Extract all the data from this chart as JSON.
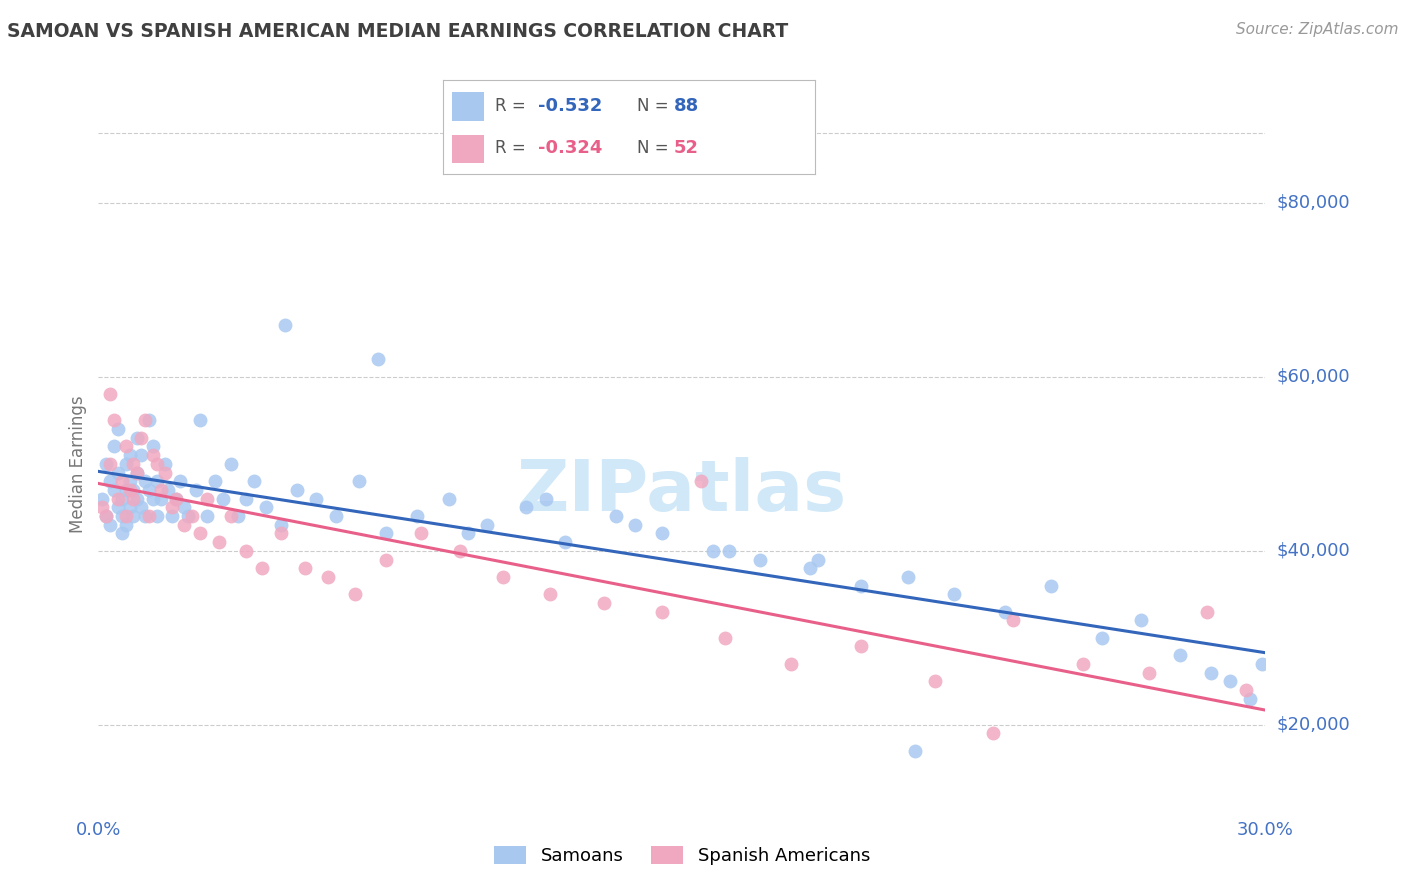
{
  "title": "SAMOAN VS SPANISH AMERICAN MEDIAN EARNINGS CORRELATION CHART",
  "source": "Source: ZipAtlas.com",
  "ylabel": "Median Earnings",
  "xlim": [
    0.0,
    0.3
  ],
  "ylim": [
    10000,
    90000
  ],
  "yticks": [
    20000,
    40000,
    60000,
    80000
  ],
  "xticks": [
    0.0,
    0.05,
    0.1,
    0.15,
    0.2,
    0.25,
    0.3
  ],
  "ytick_labels": [
    "$20,000",
    "$40,000",
    "$60,000",
    "$80,000"
  ],
  "samoan_color": "#a8c8f0",
  "spanish_color": "#f0a8c0",
  "samoan_line_color": "#3366bb",
  "spanish_line_color": "#e8608a",
  "watermark": "ZIPatlas",
  "watermark_color": "#d0e8f8",
  "grid_color": "#cccccc",
  "axis_label_color": "#4472c4",
  "title_color": "#404040",
  "samoan_x": [
    0.001,
    0.002,
    0.002,
    0.003,
    0.003,
    0.004,
    0.004,
    0.005,
    0.005,
    0.005,
    0.006,
    0.006,
    0.006,
    0.007,
    0.007,
    0.007,
    0.008,
    0.008,
    0.008,
    0.009,
    0.009,
    0.01,
    0.01,
    0.01,
    0.011,
    0.011,
    0.012,
    0.012,
    0.013,
    0.013,
    0.014,
    0.014,
    0.015,
    0.015,
    0.016,
    0.017,
    0.018,
    0.019,
    0.02,
    0.021,
    0.022,
    0.023,
    0.025,
    0.026,
    0.028,
    0.03,
    0.032,
    0.034,
    0.036,
    0.038,
    0.04,
    0.043,
    0.047,
    0.051,
    0.056,
    0.061,
    0.067,
    0.074,
    0.082,
    0.09,
    0.1,
    0.11,
    0.12,
    0.133,
    0.145,
    0.158,
    0.17,
    0.183,
    0.196,
    0.208,
    0.22,
    0.233,
    0.245,
    0.258,
    0.268,
    0.278,
    0.286,
    0.291,
    0.296,
    0.299,
    0.048,
    0.072,
    0.095,
    0.115,
    0.138,
    0.162,
    0.185,
    0.21
  ],
  "samoan_y": [
    46000,
    44000,
    50000,
    43000,
    48000,
    47000,
    52000,
    49000,
    45000,
    54000,
    44000,
    42000,
    46000,
    43000,
    47000,
    50000,
    45000,
    48000,
    51000,
    44000,
    47000,
    46000,
    49000,
    53000,
    45000,
    51000,
    48000,
    44000,
    47000,
    55000,
    46000,
    52000,
    48000,
    44000,
    46000,
    50000,
    47000,
    44000,
    46000,
    48000,
    45000,
    44000,
    47000,
    55000,
    44000,
    48000,
    46000,
    50000,
    44000,
    46000,
    48000,
    45000,
    43000,
    47000,
    46000,
    44000,
    48000,
    42000,
    44000,
    46000,
    43000,
    45000,
    41000,
    44000,
    42000,
    40000,
    39000,
    38000,
    36000,
    37000,
    35000,
    33000,
    36000,
    30000,
    32000,
    28000,
    26000,
    25000,
    23000,
    27000,
    66000,
    62000,
    42000,
    46000,
    43000,
    40000,
    39000,
    17000
  ],
  "spanish_x": [
    0.001,
    0.002,
    0.003,
    0.003,
    0.004,
    0.005,
    0.006,
    0.007,
    0.007,
    0.008,
    0.009,
    0.009,
    0.01,
    0.011,
    0.012,
    0.013,
    0.014,
    0.015,
    0.016,
    0.017,
    0.019,
    0.02,
    0.022,
    0.024,
    0.026,
    0.028,
    0.031,
    0.034,
    0.038,
    0.042,
    0.047,
    0.053,
    0.059,
    0.066,
    0.074,
    0.083,
    0.093,
    0.104,
    0.116,
    0.13,
    0.145,
    0.161,
    0.178,
    0.196,
    0.215,
    0.235,
    0.253,
    0.27,
    0.285,
    0.295,
    0.155,
    0.23
  ],
  "spanish_y": [
    45000,
    44000,
    58000,
    50000,
    55000,
    46000,
    48000,
    52000,
    44000,
    47000,
    50000,
    46000,
    49000,
    53000,
    55000,
    44000,
    51000,
    50000,
    47000,
    49000,
    45000,
    46000,
    43000,
    44000,
    42000,
    46000,
    41000,
    44000,
    40000,
    38000,
    42000,
    38000,
    37000,
    35000,
    39000,
    42000,
    40000,
    37000,
    35000,
    34000,
    33000,
    30000,
    27000,
    29000,
    25000,
    32000,
    27000,
    26000,
    33000,
    24000,
    48000,
    19000
  ]
}
